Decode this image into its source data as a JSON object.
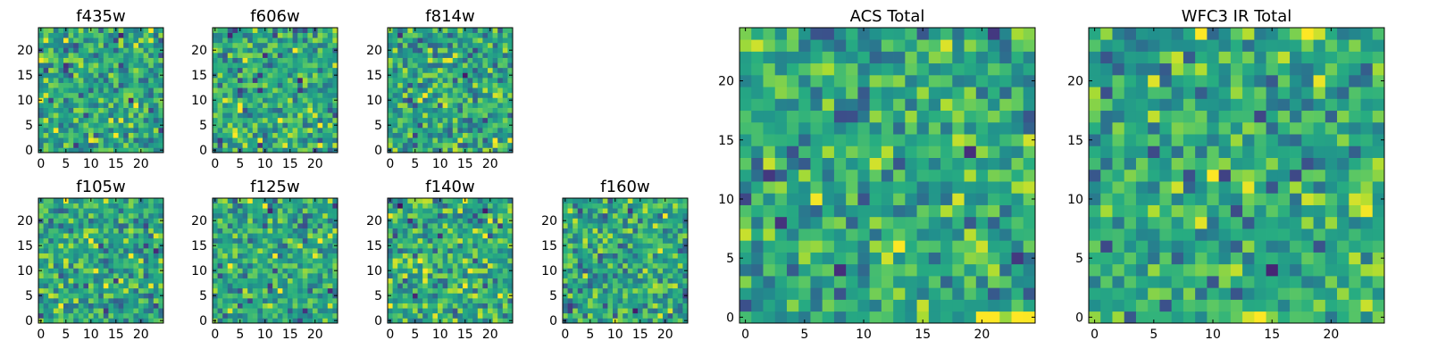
{
  "chart_data": {
    "type": "heatmap",
    "colormap": "viridis",
    "grid": false,
    "panels": [
      {
        "id": "f435w",
        "title": "f435w",
        "size": 25,
        "seed": 11,
        "vmin": -3,
        "vmax": 3,
        "xticks": [
          0,
          5,
          10,
          15,
          20
        ],
        "yticks": [
          0,
          5,
          10,
          15,
          20
        ],
        "xlim": [
          -0.5,
          24.5
        ],
        "ylim": [
          -0.5,
          24.5
        ],
        "z": null
      },
      {
        "id": "f606w",
        "title": "f606w",
        "size": 25,
        "seed": 23,
        "vmin": -3,
        "vmax": 3,
        "xticks": [
          0,
          5,
          10,
          15,
          20
        ],
        "yticks": [
          0,
          5,
          10,
          15,
          20
        ],
        "xlim": [
          -0.5,
          24.5
        ],
        "ylim": [
          -0.5,
          24.5
        ],
        "z": null
      },
      {
        "id": "f814w",
        "title": "f814w",
        "size": 25,
        "seed": 37,
        "vmin": -3,
        "vmax": 3,
        "xticks": [
          0,
          5,
          10,
          15,
          20
        ],
        "yticks": [
          0,
          5,
          10,
          15,
          20
        ],
        "xlim": [
          -0.5,
          24.5
        ],
        "ylim": [
          -0.5,
          24.5
        ],
        "z": null
      },
      {
        "id": "f105w",
        "title": "f105w",
        "size": 25,
        "seed": 41,
        "vmin": -3,
        "vmax": 3,
        "xticks": [
          0,
          5,
          10,
          15,
          20
        ],
        "yticks": [
          0,
          5,
          10,
          15,
          20
        ],
        "xlim": [
          -0.5,
          24.5
        ],
        "ylim": [
          -0.5,
          24.5
        ],
        "z": null
      },
      {
        "id": "f125w",
        "title": "f125w",
        "size": 25,
        "seed": 53,
        "vmin": -3,
        "vmax": 3,
        "xticks": [
          0,
          5,
          10,
          15,
          20
        ],
        "yticks": [
          0,
          5,
          10,
          15,
          20
        ],
        "xlim": [
          -0.5,
          24.5
        ],
        "ylim": [
          -0.5,
          24.5
        ],
        "z": null
      },
      {
        "id": "f140w",
        "title": "f140w",
        "size": 25,
        "seed": 67,
        "vmin": -3,
        "vmax": 3,
        "xticks": [
          0,
          5,
          10,
          15,
          20
        ],
        "yticks": [
          0,
          5,
          10,
          15,
          20
        ],
        "xlim": [
          -0.5,
          24.5
        ],
        "ylim": [
          -0.5,
          24.5
        ],
        "z": null
      },
      {
        "id": "f160w",
        "title": "f160w",
        "size": 25,
        "seed": 79,
        "vmin": -3,
        "vmax": 3,
        "xticks": [
          0,
          5,
          10,
          15,
          20
        ],
        "yticks": [
          0,
          5,
          10,
          15,
          20
        ],
        "xlim": [
          -0.5,
          24.5
        ],
        "ylim": [
          -0.5,
          24.5
        ],
        "z": null
      },
      {
        "id": "acs",
        "title": "ACS Total",
        "size": 25,
        "seed": 83,
        "vmin": -3,
        "vmax": 3,
        "xticks": [
          0,
          5,
          10,
          15,
          20
        ],
        "yticks": [
          0,
          5,
          10,
          15,
          20
        ],
        "xlim": [
          -0.5,
          24.5
        ],
        "ylim": [
          -0.5,
          24.5
        ],
        "z": null
      },
      {
        "id": "wfc3",
        "title": "WFC3 IR Total",
        "size": 25,
        "seed": 97,
        "vmin": -3,
        "vmax": 3,
        "xticks": [
          0,
          5,
          10,
          15,
          20
        ],
        "yticks": [
          0,
          5,
          10,
          15,
          20
        ],
        "xlim": [
          -0.5,
          24.5
        ],
        "ylim": [
          -0.5,
          24.5
        ],
        "z": null
      }
    ]
  }
}
